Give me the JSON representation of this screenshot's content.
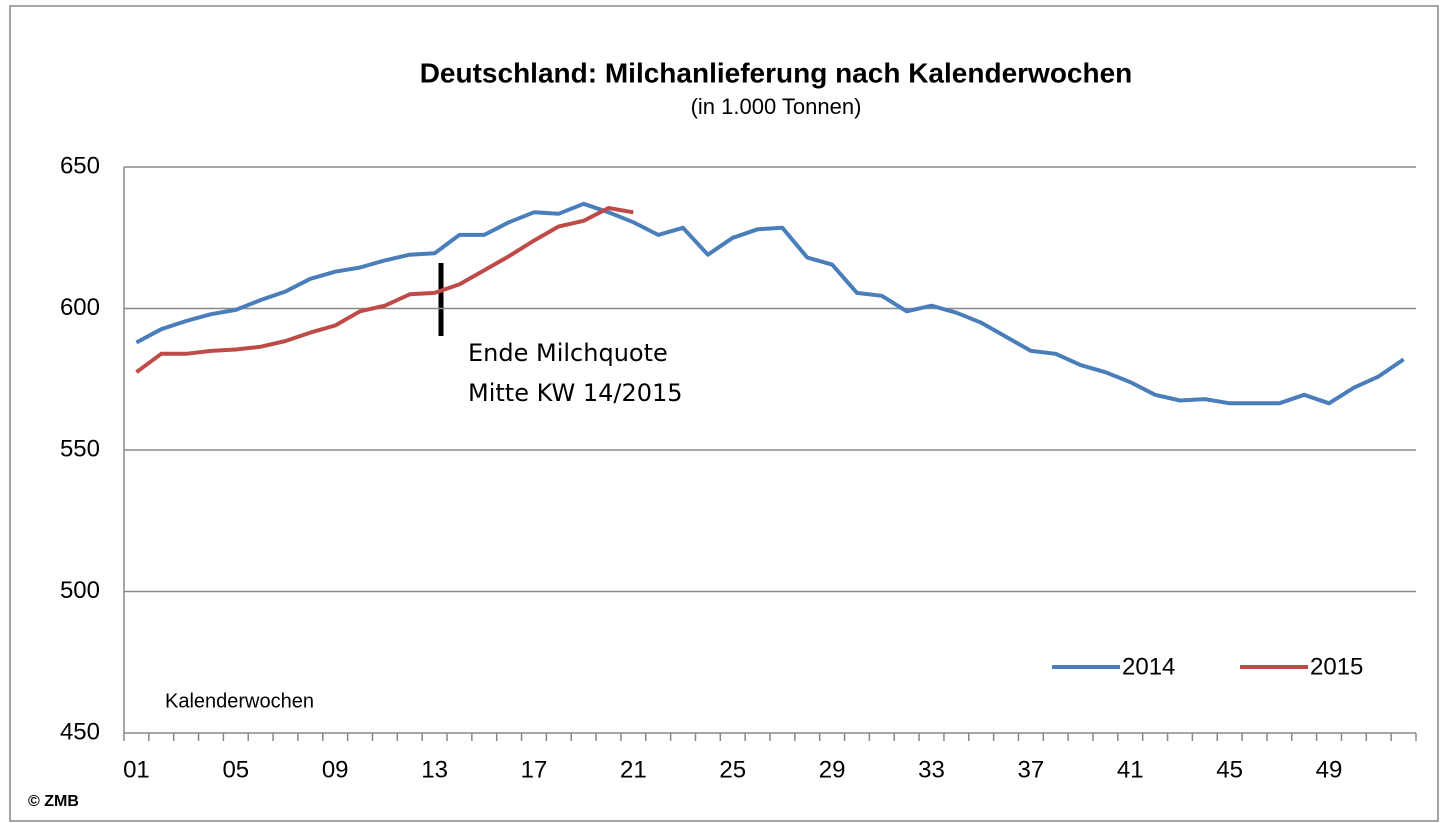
{
  "chart_data": {
    "type": "line",
    "title": "Deutschland: Milchanlieferung nach Kalenderwochen",
    "subtitle": "(in 1.000 Tonnen)",
    "x_label": "Kalenderwochen",
    "source": "© ZMB",
    "annotations": [
      "Ende Milchquote",
      "Mitte KW 14/2015"
    ],
    "categories": [
      "01",
      null,
      null,
      null,
      "05",
      null,
      null,
      null,
      "09",
      null,
      null,
      null,
      "13",
      null,
      null,
      null,
      "17",
      null,
      null,
      null,
      "21",
      null,
      null,
      null,
      "25",
      null,
      null,
      null,
      "29",
      null,
      null,
      null,
      "33",
      null,
      null,
      null,
      "37",
      null,
      null,
      null,
      "41",
      null,
      null,
      null,
      "45",
      null,
      null,
      null,
      "49",
      null,
      null,
      null
    ],
    "series": [
      {
        "name": "2014",
        "color": "#4a7ebb",
        "values": [
          588,
          592.7,
          595.6,
          598,
          599.5,
          603,
          606,
          610.5,
          613,
          614.5,
          617,
          619,
          619.5,
          626,
          626,
          630.5,
          634,
          633.5,
          637,
          634,
          630.5,
          626,
          628.5,
          619,
          625,
          628,
          628.5,
          618,
          615.5,
          605.5,
          604.5,
          599,
          601,
          598.5,
          595,
          590,
          585,
          584,
          580,
          577.5,
          574,
          569.5,
          567.5,
          568,
          566.5,
          566.5,
          566.5,
          569.5,
          566.5,
          572,
          576,
          582
        ]
      },
      {
        "name": "2015",
        "color": "#be4b48",
        "values": [
          577.5,
          584,
          584,
          585,
          585.5,
          586.5,
          588.5,
          591.5,
          594,
          599,
          601,
          605,
          605.5,
          608.5,
          613.5,
          618.5,
          624,
          629,
          631,
          635.5,
          634,
          null,
          null,
          null,
          null,
          null,
          null,
          null,
          null,
          null,
          null,
          null,
          null,
          null,
          null,
          null,
          null,
          null,
          null,
          null,
          null,
          null,
          null,
          null,
          null,
          null,
          null,
          null,
          null,
          null,
          null,
          null
        ]
      }
    ],
    "ylim": [
      450,
      650
    ],
    "yticks": [
      450,
      500,
      550,
      600,
      650
    ],
    "grid": true,
    "legend": "bottom-right"
  }
}
